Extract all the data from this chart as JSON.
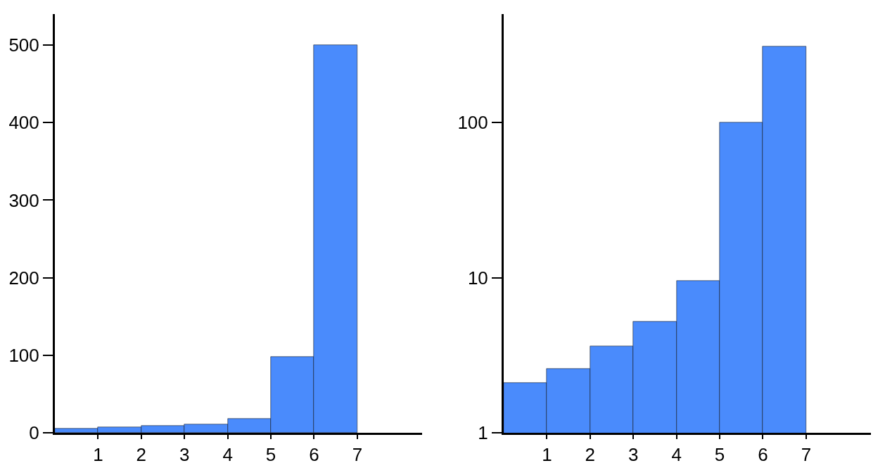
{
  "chart_data": [
    {
      "type": "histogram",
      "bins": [
        0,
        1,
        2,
        3,
        4,
        5,
        6,
        7
      ],
      "values": [
        5,
        7,
        9,
        11,
        18,
        98,
        500
      ],
      "color": "#4a8bfc",
      "xlim": [
        0,
        8.5
      ],
      "xticks": [
        1,
        2,
        3,
        4,
        5,
        6,
        7
      ],
      "ylim": [
        0,
        540
      ],
      "yticks": [
        0,
        100,
        200,
        300,
        400,
        500
      ]
    },
    {
      "type": "histogram",
      "bins": [
        0,
        1,
        2,
        3,
        4,
        5,
        6,
        7
      ],
      "values": [
        2.1,
        2.6,
        3.6,
        5.2,
        9.5,
        100,
        310
      ],
      "color": "#4a8bfc",
      "log": true,
      "xlim": [
        0,
        8.5
      ],
      "xticks": [
        1,
        2,
        3,
        4,
        5,
        6,
        7
      ],
      "ylim": [
        1,
        500
      ],
      "yticks": [
        1,
        10,
        100
      ]
    }
  ]
}
